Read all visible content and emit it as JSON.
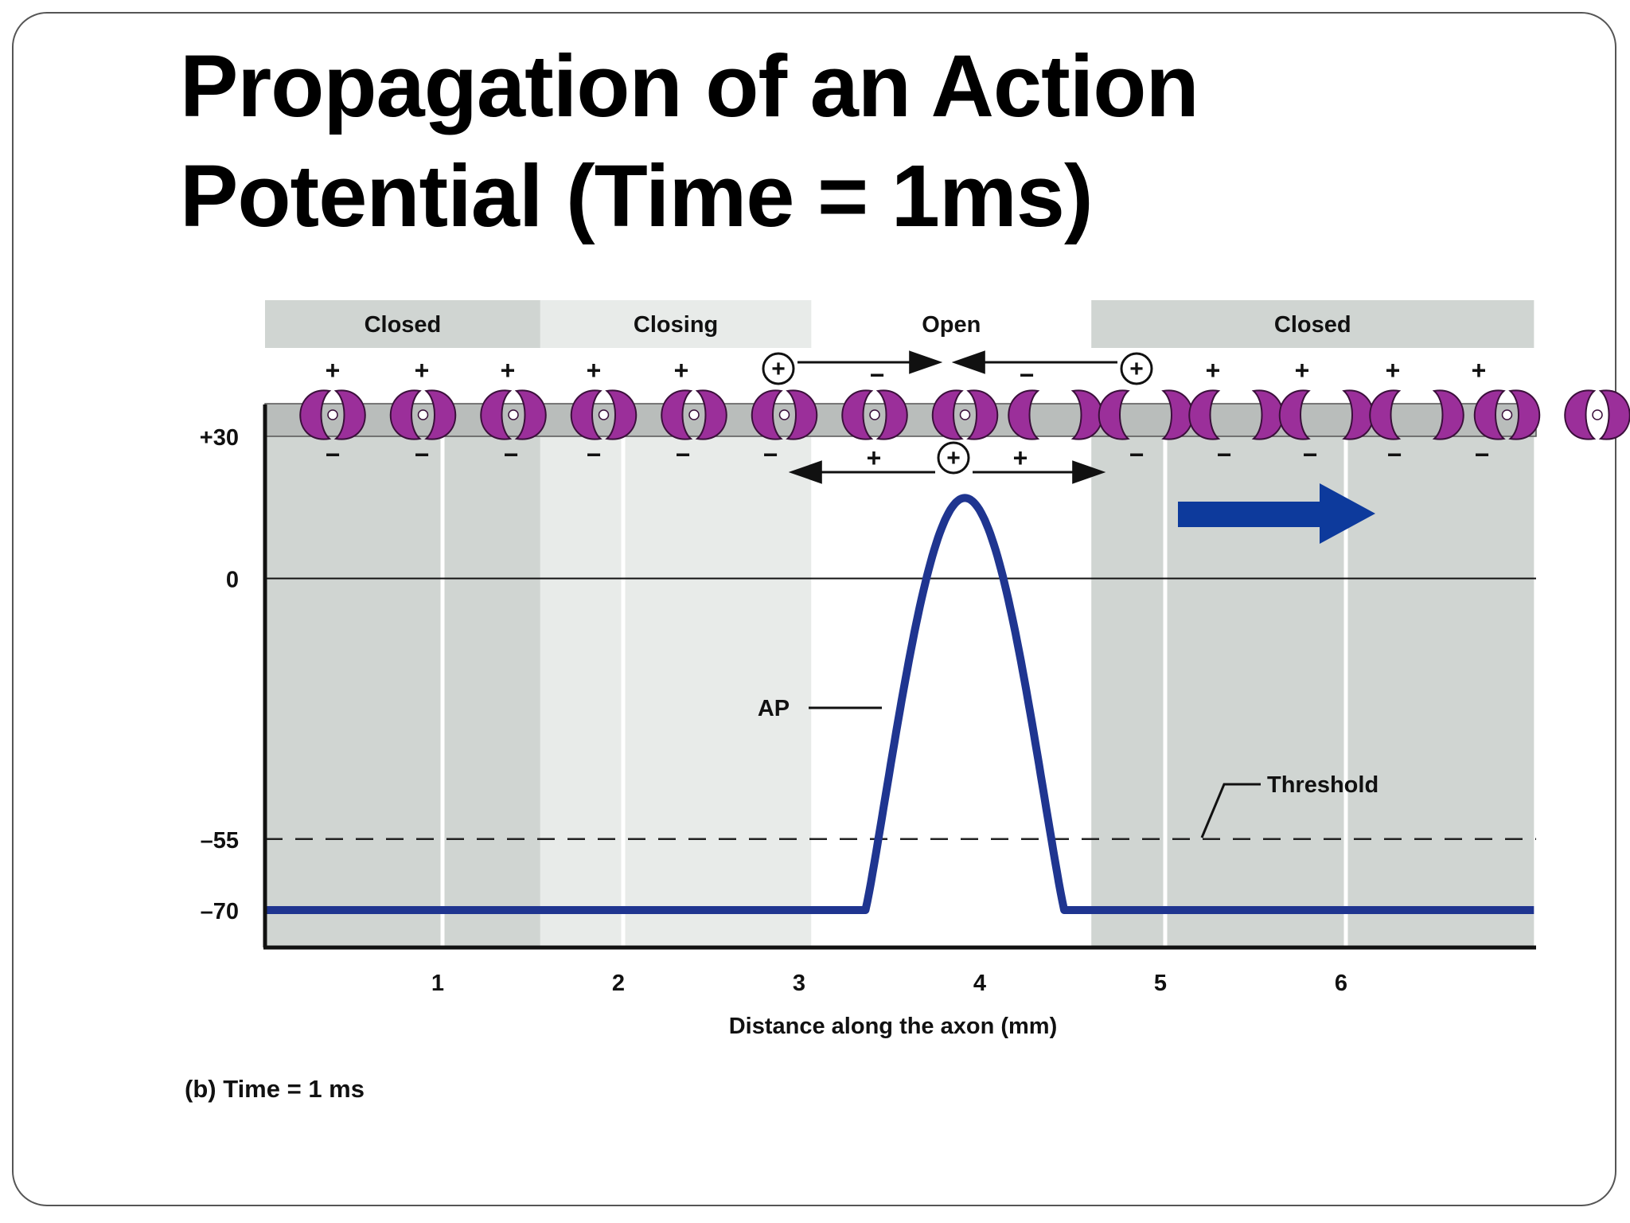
{
  "slide": {
    "title_line1": "Propagation of an Action",
    "title_line2": "Potential (Time = 1ms)",
    "caption": "(b) Time = 1 ms"
  },
  "diagram": {
    "zones": [
      {
        "label": "Closed",
        "color": "#d0d5d2",
        "x_start": 0,
        "x_end": 1.55
      },
      {
        "label": "Closing",
        "color": "#e8ebe9",
        "x_start": 1.55,
        "x_end": 3.05
      },
      {
        "label": "Open",
        "color": "#ffffff",
        "x_start": 3.05,
        "x_end": 4.6
      },
      {
        "label": "Closed",
        "color": "#d0d5d2",
        "x_start": 4.6,
        "x_end": 7.05
      }
    ],
    "charge_plus": "+",
    "charge_minus": "−",
    "charge_circled_plus": "+",
    "ap_label": "AP",
    "threshold_label": "Threshold",
    "y_ticks": [
      {
        "label": "+30",
        "value": 30
      },
      {
        "label": "0",
        "value": 0
      },
      {
        "label": "–55",
        "value": -55
      },
      {
        "label": "–70",
        "value": -70
      }
    ],
    "x_ticks": [
      {
        "label": "1",
        "value": 1
      },
      {
        "label": "2",
        "value": 2
      },
      {
        "label": "3",
        "value": 3
      },
      {
        "label": "4",
        "value": 4
      },
      {
        "label": "5",
        "value": 5
      },
      {
        "label": "6",
        "value": 6
      }
    ],
    "x_axis_label": "Distance along the axon (mm)",
    "colors": {
      "ap_curve": "#1f3590",
      "channel": "#9b2f9a",
      "channel_stroke": "#3a0f3a",
      "membrane": "#b9bdbb",
      "direction_arrow": "#0d3a9c"
    },
    "channels": {
      "closed_count_left": 8,
      "open_count": 5,
      "closed_count_right": 5
    },
    "ap_curve": {
      "resting_mv": -70,
      "peak_mv": 17,
      "peak_x_mm": 3.9,
      "threshold_mv": -55
    }
  }
}
